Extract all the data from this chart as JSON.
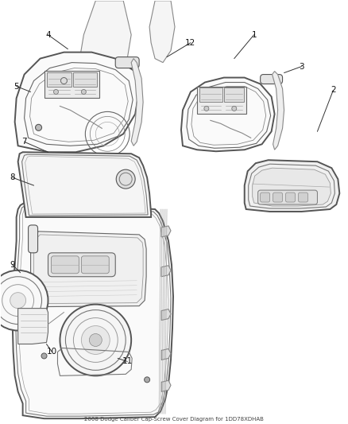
{
  "title": "2008 Dodge Caliber Cap-Screw Cover Diagram for 1DD78XDHAB",
  "background_color": "#ffffff",
  "figure_width": 4.38,
  "figure_height": 5.33,
  "dpi": 100,
  "line_color": "#555555",
  "label_fontsize": 7.5
}
